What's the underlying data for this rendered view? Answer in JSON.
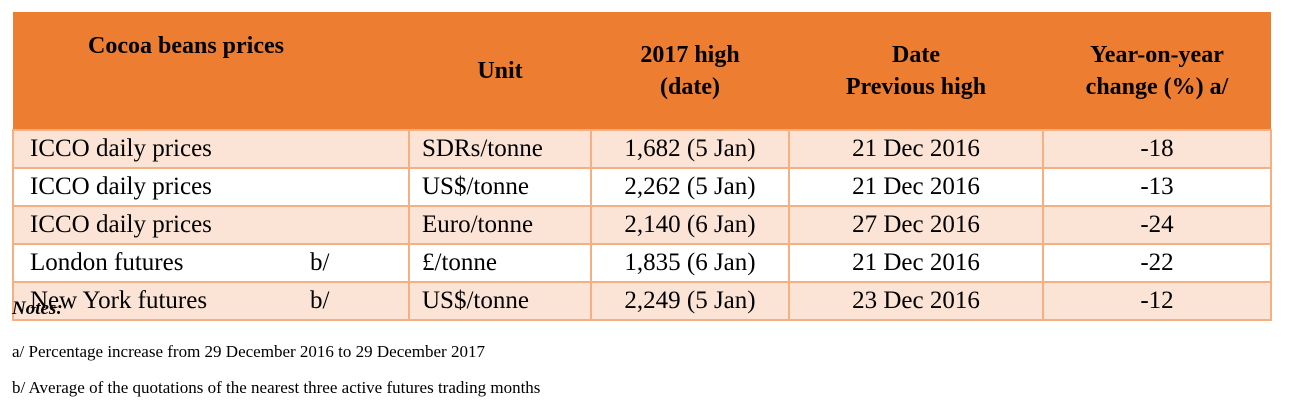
{
  "table": {
    "header": [
      "Cocoa beans prices",
      "Unit",
      "2017 high\n(date)",
      "Date\nPrevious high",
      "Year-on-year\nchange (%) a/"
    ],
    "rows": [
      {
        "name": "ICCO daily prices",
        "marker": null,
        "unit": "SDRs/tonne",
        "high": "1,682 (5 Jan)",
        "previous": "21 Dec 2016",
        "change": -18
      },
      {
        "name": "ICCO daily prices",
        "marker": null,
        "unit": "US$/tonne",
        "high": "2,262 (5 Jan)",
        "previous": "21 Dec 2016",
        "change": -13
      },
      {
        "name": "ICCO daily prices",
        "marker": null,
        "unit": "Euro/tonne",
        "high": "2,140 (6 Jan)",
        "previous": "27 Dec 2016",
        "change": -24
      },
      {
        "name": "London futures",
        "marker": "b/",
        "unit": "£/tonne",
        "high": "1,835 (6 Jan)",
        "previous": "21 Dec 2016",
        "change": -22
      },
      {
        "name": "New York futures",
        "marker": "b/",
        "unit": "US$/tonne",
        "high": "2,249 (5 Jan)",
        "previous": "23 Dec 2016",
        "change": -12
      }
    ]
  },
  "notes": {
    "title": "Notes:",
    "items": [
      "a/ Percentage increase from 29 December 2016 to 29 December 2017",
      "b/ Average of the quotations of the nearest three active futures trading months"
    ]
  }
}
